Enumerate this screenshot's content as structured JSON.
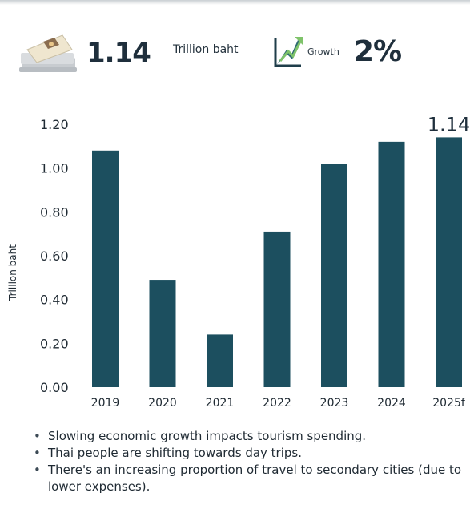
{
  "stats": {
    "total_value": "1.14",
    "total_unit": "Trillion baht",
    "growth_label": "Growth",
    "growth_value": "2%"
  },
  "chart_data": {
    "type": "bar",
    "title": "",
    "xlabel": "",
    "ylabel": "Trillion baht",
    "categories": [
      "2019",
      "2020",
      "2021",
      "2022",
      "2023",
      "2024",
      "2025f"
    ],
    "values": [
      1.08,
      0.49,
      0.24,
      0.71,
      1.02,
      1.12,
      1.14
    ],
    "y_ticks": [
      "1.20",
      "1.00",
      "0.80",
      "0.60",
      "0.40",
      "0.20",
      "0.00"
    ],
    "ylim": [
      0,
      1.2
    ],
    "grid": false,
    "bar_color": "#1c4f5f",
    "annotations": [
      {
        "category": "2025f",
        "text": "1.14"
      }
    ]
  },
  "notes": [
    "Slowing economic growth impacts tourism spending.",
    "Thai people are shifting towards day trips.",
    "There's an increasing proportion of travel to secondary cities (due to lower expenses)."
  ]
}
